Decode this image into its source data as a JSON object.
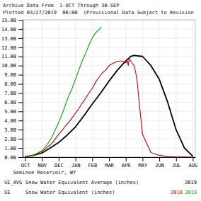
{
  "chart_data": {
    "type": "line",
    "title": "Archive Data From  1-OCT Through 30-SEP",
    "subtitle": "Plotted 03/27/2019  06:00  (Provisional Data Subject to Revision",
    "annotations": [
      "   Seminoe Reservoir, WY",
      "SE_AVG",
      "Snow Water Equivalent Average (inches)",
      "SE",
      "Snow Water Equivalent (inches)"
    ],
    "grid": true,
    "xlim": [
      -0.15,
      10.15
    ],
    "xticks": [
      {
        "value": 0,
        "label": "OCT"
      },
      {
        "value": 1,
        "label": "NOV"
      },
      {
        "value": 2,
        "label": "DEC"
      },
      {
        "value": 3,
        "label": "JAN"
      },
      {
        "value": 4,
        "label": "FEB"
      },
      {
        "value": 5,
        "label": "MAR"
      },
      {
        "value": 6,
        "label": "APR"
      },
      {
        "value": 7,
        "label": "MAY"
      },
      {
        "value": 8,
        "label": "JUN"
      },
      {
        "value": 9,
        "label": "JUL"
      },
      {
        "value": 10,
        "label": "AUG"
      }
    ],
    "ylim": [
      0,
      15
    ],
    "yticks": [
      {
        "value": 0,
        "label": "0.00"
      },
      {
        "value": 1,
        "label": "1.00"
      },
      {
        "value": 2,
        "label": "2.00"
      },
      {
        "value": 3,
        "label": "3.00"
      },
      {
        "value": 4,
        "label": "4.00"
      },
      {
        "value": 5,
        "label": "5.00"
      },
      {
        "value": 6,
        "label": "6.00"
      },
      {
        "value": 7,
        "label": "7.00"
      },
      {
        "value": 8,
        "label": "8.00"
      },
      {
        "value": 9,
        "label": "9.00"
      },
      {
        "value": 10,
        "label": "10.00"
      },
      {
        "value": 11,
        "label": "11.00"
      },
      {
        "value": 12,
        "label": "12.00"
      },
      {
        "value": 13,
        "label": "13.00"
      },
      {
        "value": 14,
        "label": "14.00"
      },
      {
        "value": 15,
        "label": "15.00"
      }
    ],
    "series": [
      {
        "name": "2019",
        "color": "#000000",
        "x": [
          0,
          0.5,
          1.0,
          1.5,
          2.0,
          2.5,
          3.0,
          3.5,
          4.0,
          4.5,
          5.0,
          5.5,
          6.0,
          6.3,
          6.5,
          7.0,
          7.5,
          8.0,
          8.5,
          9.0,
          9.5,
          10.0
        ],
        "values": [
          0.05,
          0.2,
          0.45,
          1.0,
          1.6,
          2.4,
          3.3,
          4.5,
          5.8,
          7.0,
          8.3,
          9.5,
          10.5,
          11.0,
          11.1,
          11.0,
          10.0,
          8.5,
          6.0,
          3.0,
          1.0,
          0.1
        ]
      },
      {
        "name": "2018",
        "color": "#cc0000",
        "x": [
          0,
          0.2,
          0.4,
          0.6,
          0.8,
          1.0,
          1.2,
          1.4,
          1.6,
          1.8,
          2.0,
          2.2,
          2.4,
          2.6,
          2.8,
          3.0,
          3.2,
          3.4,
          3.6,
          3.8,
          4.0,
          4.2,
          4.4,
          4.6,
          4.8,
          5.0,
          5.2,
          5.4,
          5.6,
          5.8,
          6.0,
          6.1,
          6.15,
          6.2,
          6.3,
          6.4,
          6.5,
          6.6,
          6.7,
          6.8,
          7.0,
          7.5,
          8.0,
          8.5,
          9.0,
          9.5,
          10.0
        ],
        "values": [
          0.05,
          0.1,
          0.15,
          0.3,
          0.5,
          0.6,
          0.9,
          1.2,
          1.5,
          2.0,
          2.5,
          2.9,
          3.4,
          3.8,
          4.3,
          4.8,
          5.3,
          5.9,
          6.4,
          7.0,
          7.5,
          8.2,
          8.7,
          9.2,
          9.5,
          10.0,
          10.2,
          10.4,
          10.5,
          10.5,
          10.3,
          10.5,
          10.0,
          10.7,
          10.5,
          10.2,
          10.0,
          9.2,
          8.0,
          6.0,
          2.5,
          0.5,
          0.2,
          0.05,
          0.02,
          0.01,
          0.0
        ]
      },
      {
        "name": "2019",
        "color": "#00aa00",
        "x": [
          0,
          0.2,
          0.4,
          0.6,
          0.8,
          1.0,
          1.2,
          1.4,
          1.6,
          1.8,
          2.0,
          2.2,
          2.4,
          2.6,
          2.8,
          3.0,
          3.2,
          3.4,
          3.6,
          3.8,
          4.0,
          4.2,
          4.4,
          4.5,
          4.55
        ],
        "values": [
          0.05,
          0.1,
          0.2,
          0.3,
          0.5,
          0.7,
          1.1,
          1.6,
          2.2,
          3.0,
          3.8,
          4.7,
          5.7,
          6.7,
          7.5,
          8.5,
          9.5,
          10.5,
          11.3,
          12.2,
          13.0,
          13.6,
          13.9,
          14.1,
          14.2
        ]
      }
    ]
  }
}
